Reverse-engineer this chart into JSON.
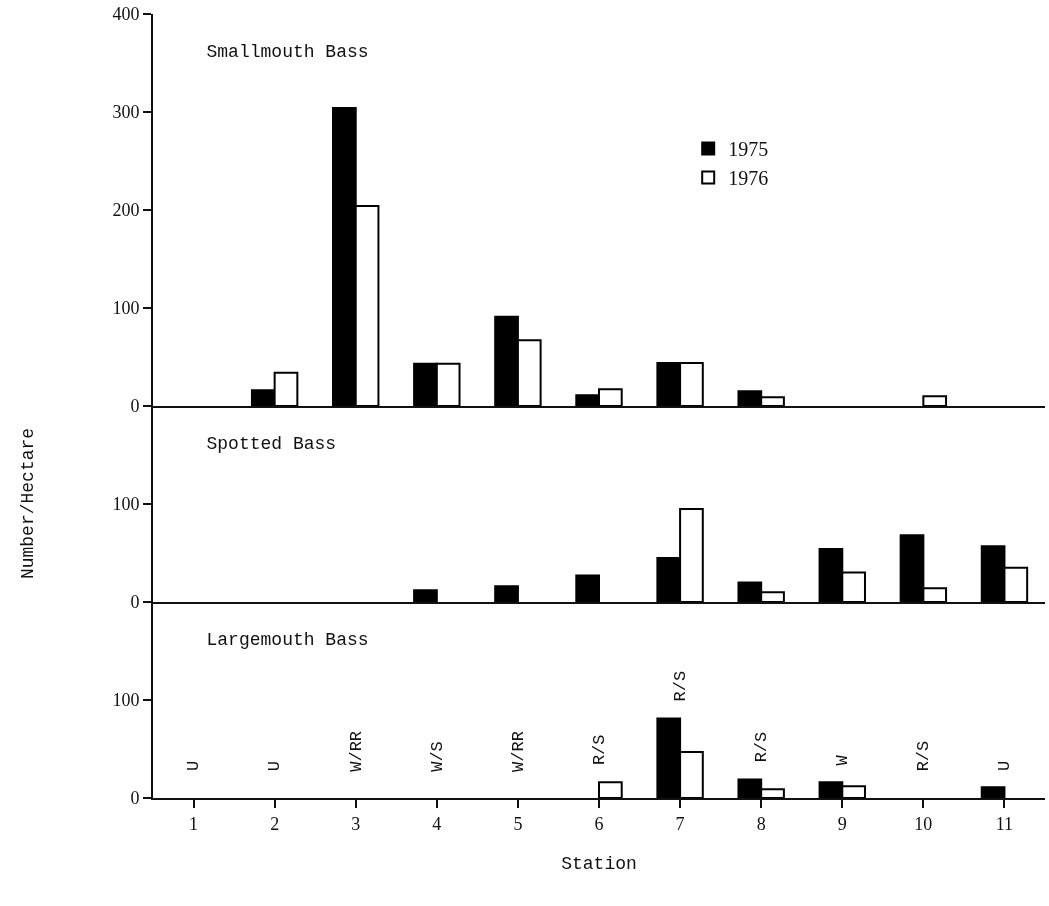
{
  "chart_data": [
    {
      "type": "bar",
      "title": "Smallmouth Bass",
      "categories": [
        "1",
        "2",
        "3",
        "4",
        "5",
        "6",
        "7",
        "8",
        "9",
        "10",
        "11"
      ],
      "ylim": [
        0,
        400
      ],
      "yticks": [
        0,
        100,
        200,
        300,
        400
      ],
      "legend": "right",
      "tick_labels": "y",
      "grid": false,
      "series": [
        {
          "name": "1975",
          "color": "#000000",
          "values": [
            0,
            16,
            304,
            43,
            91,
            11,
            44,
            15,
            0,
            0,
            0
          ]
        },
        {
          "name": "1976",
          "color": "#ffffff",
          "values": [
            0,
            34,
            204,
            43,
            67,
            17,
            44,
            9,
            0,
            10,
            0
          ]
        }
      ]
    },
    {
      "type": "bar",
      "title": "Spotted Bass",
      "ylabel": "Number/Hectare",
      "categories": [
        "1",
        "2",
        "3",
        "4",
        "5",
        "6",
        "7",
        "8",
        "9",
        "10",
        "11"
      ],
      "ylim": [
        0,
        200
      ],
      "yticks": [
        0,
        100
      ],
      "tick_labels": "y",
      "grid": false,
      "legend": false,
      "series": [
        {
          "color": "#000000",
          "values": [
            0,
            0,
            0,
            12,
            16,
            27,
            45,
            20,
            54,
            68,
            57
          ]
        },
        {
          "color": "#ffffff",
          "values": [
            0,
            0,
            0,
            0,
            0,
            0,
            95,
            10,
            30,
            14,
            35
          ]
        }
      ]
    },
    {
      "type": "bar",
      "title": "Largemouth Bass",
      "xlabel": "Station",
      "categories": [
        "1",
        "2",
        "3",
        "4",
        "5",
        "6",
        "7",
        "8",
        "9",
        "10",
        "11"
      ],
      "ylim": [
        0,
        200
      ],
      "yticks": [
        0,
        100
      ],
      "grid": false,
      "legend": false,
      "series": [
        {
          "color": "#000000",
          "values": [
            0,
            0,
            0,
            0,
            0,
            0,
            81,
            19,
            16,
            0,
            11
          ]
        },
        {
          "color": "#ffffff",
          "values": [
            0,
            0,
            0,
            0,
            0,
            16,
            47,
            9,
            12,
            0,
            0
          ]
        }
      ],
      "annotations": [
        "U",
        "U",
        "W/RR",
        "W/S",
        "W/RR",
        "R/S",
        "R/S",
        "R/S",
        "W",
        "R/S",
        "U"
      ]
    }
  ]
}
